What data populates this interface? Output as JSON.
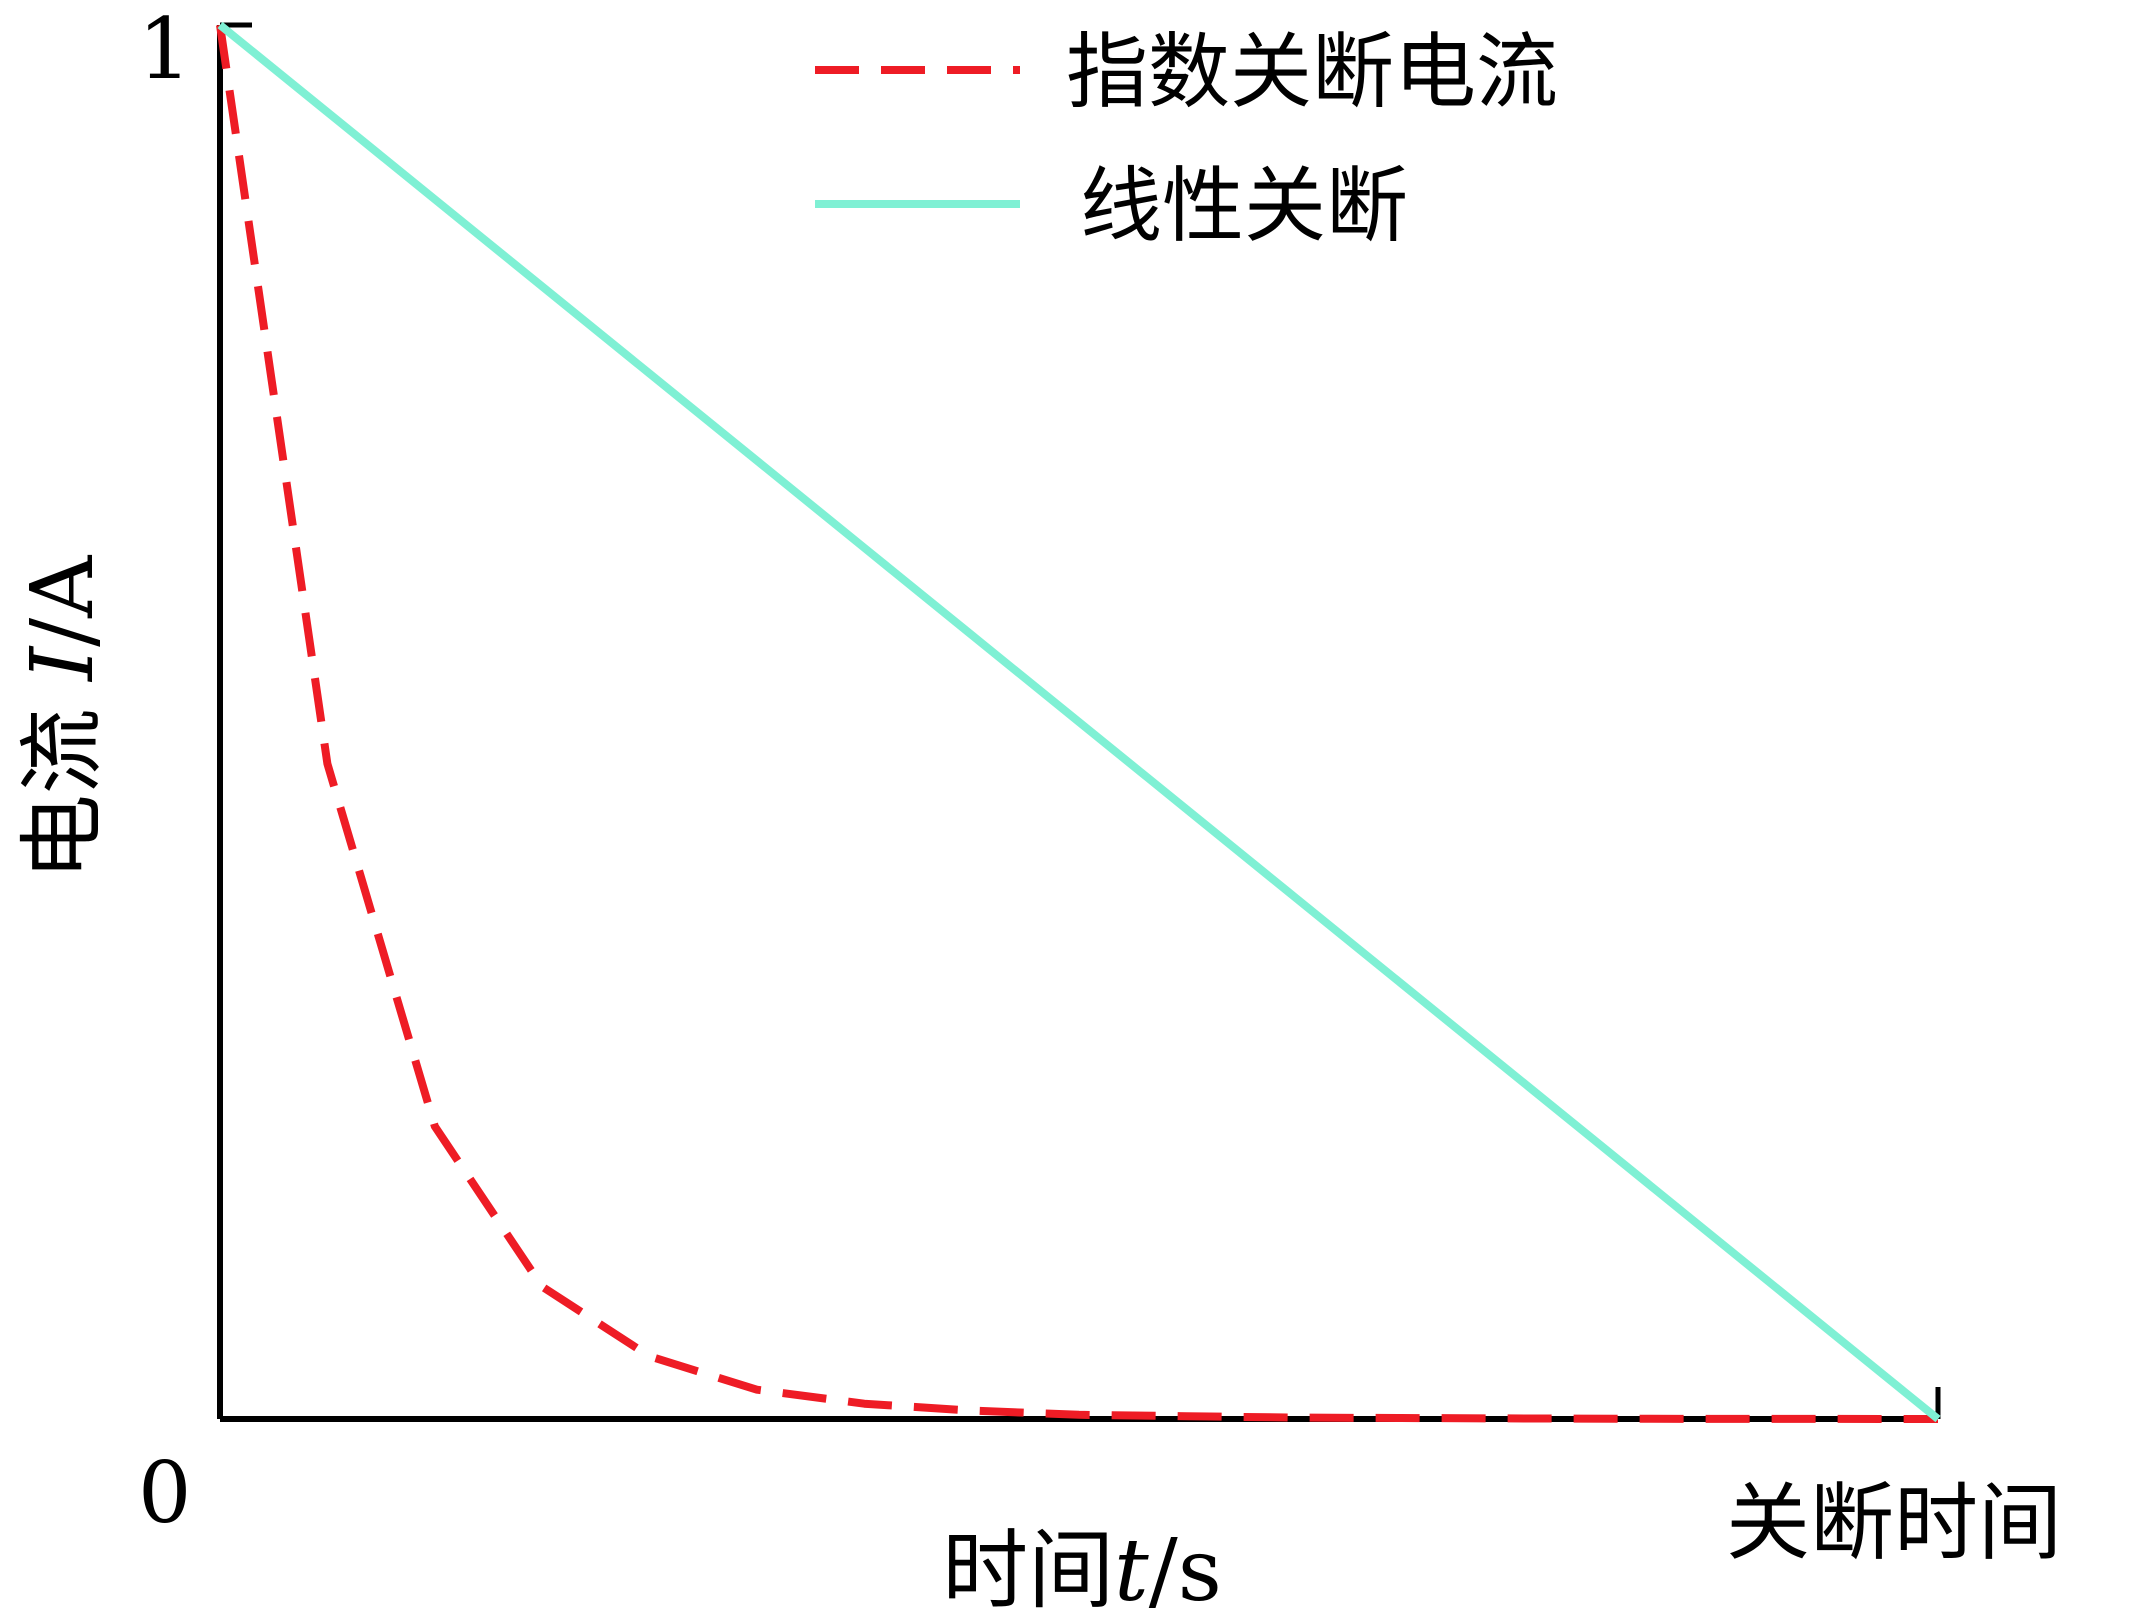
{
  "chart_data": {
    "type": "line",
    "x": [
      0,
      0.5,
      1,
      1.5,
      2,
      2.5,
      3,
      3.5,
      4,
      4.5,
      5,
      5.5,
      6,
      6.5,
      7,
      7.5,
      8
    ],
    "xlim": [
      0,
      8
    ],
    "ylim": [
      0,
      1
    ],
    "x_tick_labels": {
      "start": "0",
      "end": "关断时间"
    },
    "y_tick_labels": {
      "top": "1"
    },
    "xlabel": {
      "prefix": "时间",
      "var": "t",
      "unit": "/s"
    },
    "ylabel": {
      "prefix": "电流 ",
      "var": "I",
      "unit": "/A"
    },
    "grid": false,
    "legend_position": "top-right",
    "series": [
      {
        "name": "指数关断电流",
        "style": "dashed",
        "color": "#ee1c25",
        "values": [
          1.0,
          0.47,
          0.21,
          0.095,
          0.045,
          0.021,
          0.011,
          0.006,
          0.003,
          0.002,
          0.001,
          0.0007,
          0.0004,
          0.0002,
          0.0001,
          5e-05,
          0.0
        ]
      },
      {
        "name": "线性关断",
        "style": "solid",
        "color": "#7ff0d4",
        "values": [
          1.0,
          0.9375,
          0.875,
          0.8125,
          0.75,
          0.6875,
          0.625,
          0.5625,
          0.5,
          0.4375,
          0.375,
          0.3125,
          0.25,
          0.1875,
          0.125,
          0.0625,
          0.0
        ]
      }
    ]
  }
}
